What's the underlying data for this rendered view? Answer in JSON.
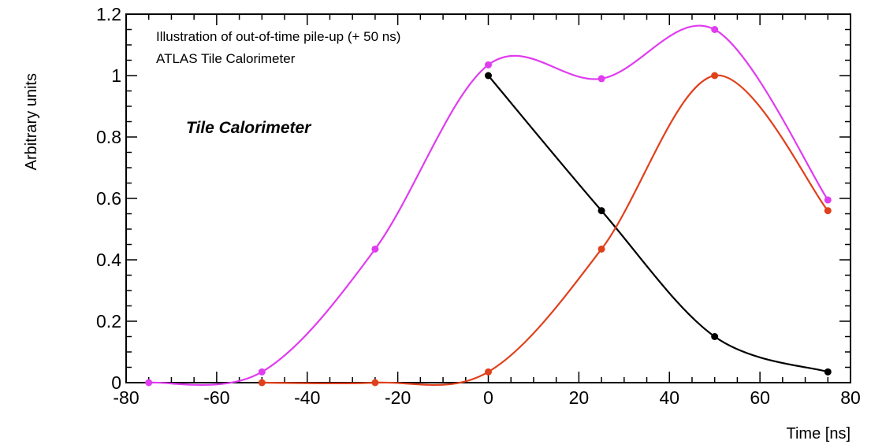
{
  "chart_data": {
    "type": "line",
    "xlabel": "Time [ns]",
    "ylabel": "Arbitrary units",
    "xlim": [
      -80,
      80
    ],
    "ylim": [
      0,
      1.2
    ],
    "x_ticks": [
      -80,
      -60,
      -40,
      -20,
      0,
      20,
      40,
      60,
      80
    ],
    "y_ticks": [
      0,
      0.2,
      0.4,
      0.6,
      0.8,
      1,
      1.2
    ],
    "x_tick_labels": [
      "-80",
      "-60",
      "-40",
      "-20",
      "0",
      "20",
      "40",
      "60",
      "80"
    ],
    "y_tick_labels": [
      "0",
      "0.2",
      "0.4",
      "0.6",
      "0.8",
      "1",
      "1.2"
    ],
    "annotations": [
      "Illustration of out-of-time pile-up (+ 50 ns)",
      "ATLAS Tile Calorimeter",
      "Tile Calorimeter"
    ],
    "grid": false,
    "series": [
      {
        "color": "#000000",
        "x": [
          0,
          25,
          50,
          75
        ],
        "y": [
          1.0,
          0.56,
          0.15,
          0.035
        ]
      },
      {
        "color": "#e0401c",
        "x": [
          -50,
          -25,
          0,
          25,
          50,
          75
        ],
        "y": [
          0.0,
          0.0,
          0.035,
          0.435,
          1.0,
          0.56
        ]
      },
      {
        "color": "#e03cf0",
        "x": [
          -75,
          -50,
          -25,
          0,
          25,
          50,
          75
        ],
        "y": [
          0.0,
          0.035,
          0.435,
          1.035,
          0.99,
          1.15,
          0.595
        ]
      }
    ]
  }
}
